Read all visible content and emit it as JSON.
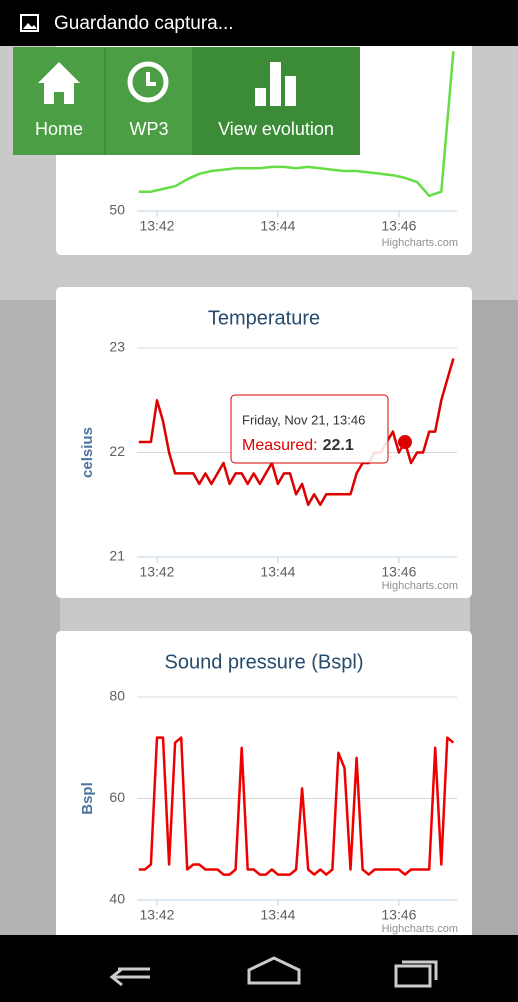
{
  "status_bar": {
    "text": "Guardando captura..."
  },
  "nav": {
    "buttons": [
      "Home",
      "WP3",
      "View evolution"
    ]
  },
  "chart_data": [
    {
      "type": "line",
      "color": "#66dd44",
      "x": [
        41.7,
        41.9,
        42.1,
        42.3,
        42.5,
        42.7,
        42.9,
        43.1,
        43.3,
        43.5,
        43.7,
        43.9,
        44.1,
        44.3,
        44.5,
        44.7,
        44.9,
        45.1,
        45.3,
        45.5,
        45.7,
        45.9,
        46.1,
        46.3,
        46.5,
        46.7,
        46.9
      ],
      "values": [
        64,
        64,
        66,
        68,
        73,
        77,
        79,
        80,
        81,
        81,
        81,
        82,
        82,
        81,
        82,
        81,
        80,
        79,
        79,
        78,
        77,
        76,
        74,
        71,
        61,
        64,
        166
      ],
      "xlim": [
        41.67,
        46.96
      ],
      "ylim": [
        50,
        169
      ],
      "xticks": [
        {
          "value": 42,
          "label": "13:42"
        },
        {
          "value": 44,
          "label": "13:44"
        },
        {
          "value": 46,
          "label": "13:46"
        }
      ],
      "yticks": [
        50
      ],
      "credits": "Highcharts.com"
    },
    {
      "type": "line",
      "title": "Temperature",
      "y_label": "celsius",
      "color": "#dd0000",
      "x": [
        41.7,
        41.8,
        41.9,
        42.0,
        42.1,
        42.2,
        42.3,
        42.4,
        42.5,
        42.6,
        42.7,
        42.8,
        42.9,
        43.0,
        43.1,
        43.2,
        43.3,
        43.4,
        43.5,
        43.6,
        43.7,
        43.8,
        43.9,
        44.0,
        44.1,
        44.2,
        44.3,
        44.4,
        44.5,
        44.6,
        44.7,
        44.8,
        44.9,
        45.0,
        45.1,
        45.2,
        45.3,
        45.4,
        45.5,
        45.6,
        45.7,
        45.8,
        45.9,
        46.0,
        46.1,
        46.2,
        46.3,
        46.4,
        46.5,
        46.6,
        46.7,
        46.8,
        46.9
      ],
      "values": [
        22.1,
        22.1,
        22.1,
        22.5,
        22.3,
        22.0,
        21.8,
        21.8,
        21.8,
        21.8,
        21.7,
        21.8,
        21.7,
        21.8,
        21.9,
        21.7,
        21.8,
        21.8,
        21.7,
        21.8,
        21.7,
        21.8,
        21.9,
        21.7,
        21.8,
        21.8,
        21.6,
        21.7,
        21.5,
        21.6,
        21.5,
        21.6,
        21.6,
        21.6,
        21.6,
        21.6,
        21.8,
        21.9,
        21.9,
        22.0,
        22.0,
        22.1,
        22.2,
        22.0,
        22.1,
        21.9,
        22.0,
        22.0,
        22.2,
        22.2,
        22.5,
        22.7,
        22.9
      ],
      "xlim": [
        41.67,
        46.96
      ],
      "ylim": [
        21,
        23
      ],
      "xticks": [
        {
          "value": 42,
          "label": "13:42"
        },
        {
          "value": 44,
          "label": "13:44"
        },
        {
          "value": 46,
          "label": "13:46"
        }
      ],
      "yticks": [
        21,
        22,
        23
      ],
      "tooltip": {
        "date": "Friday, Nov 21, 13:46",
        "label": "Measured:",
        "index": 44
      },
      "credits": "Highcharts.com"
    },
    {
      "type": "line",
      "title": "Sound pressure (Bspl)",
      "y_label": "Bspl",
      "color": "#ee0000",
      "x": [
        41.7,
        41.8,
        41.9,
        42.0,
        42.1,
        42.2,
        42.3,
        42.4,
        42.5,
        42.6,
        42.7,
        42.8,
        42.9,
        43.0,
        43.1,
        43.2,
        43.3,
        43.4,
        43.5,
        43.6,
        43.7,
        43.8,
        43.9,
        44.0,
        44.1,
        44.2,
        44.3,
        44.4,
        44.5,
        44.6,
        44.7,
        44.8,
        44.9,
        45.0,
        45.1,
        45.2,
        45.3,
        45.4,
        45.5,
        45.6,
        45.7,
        45.8,
        45.9,
        46.0,
        46.1,
        46.2,
        46.3,
        46.4,
        46.5,
        46.6,
        46.7,
        46.8,
        46.9
      ],
      "values": [
        46,
        46,
        47,
        72,
        72,
        47,
        71,
        72,
        46,
        47,
        47,
        46,
        46,
        46,
        45,
        45,
        46,
        70,
        46,
        46,
        45,
        45,
        46,
        45,
        45,
        45,
        46,
        62,
        46,
        45,
        46,
        45,
        46,
        69,
        66,
        46,
        68,
        46,
        45,
        46,
        46,
        46,
        46,
        46,
        45,
        46,
        46,
        46,
        46,
        70,
        47,
        72,
        71
      ],
      "xlim": [
        41.67,
        46.96
      ],
      "ylim": [
        40,
        80
      ],
      "xticks": [
        {
          "value": 42,
          "label": "13:42"
        },
        {
          "value": 44,
          "label": "13:44"
        },
        {
          "value": 46,
          "label": "13:46"
        }
      ],
      "yticks": [
        40,
        60,
        80
      ],
      "credits": "Highcharts.com"
    }
  ]
}
